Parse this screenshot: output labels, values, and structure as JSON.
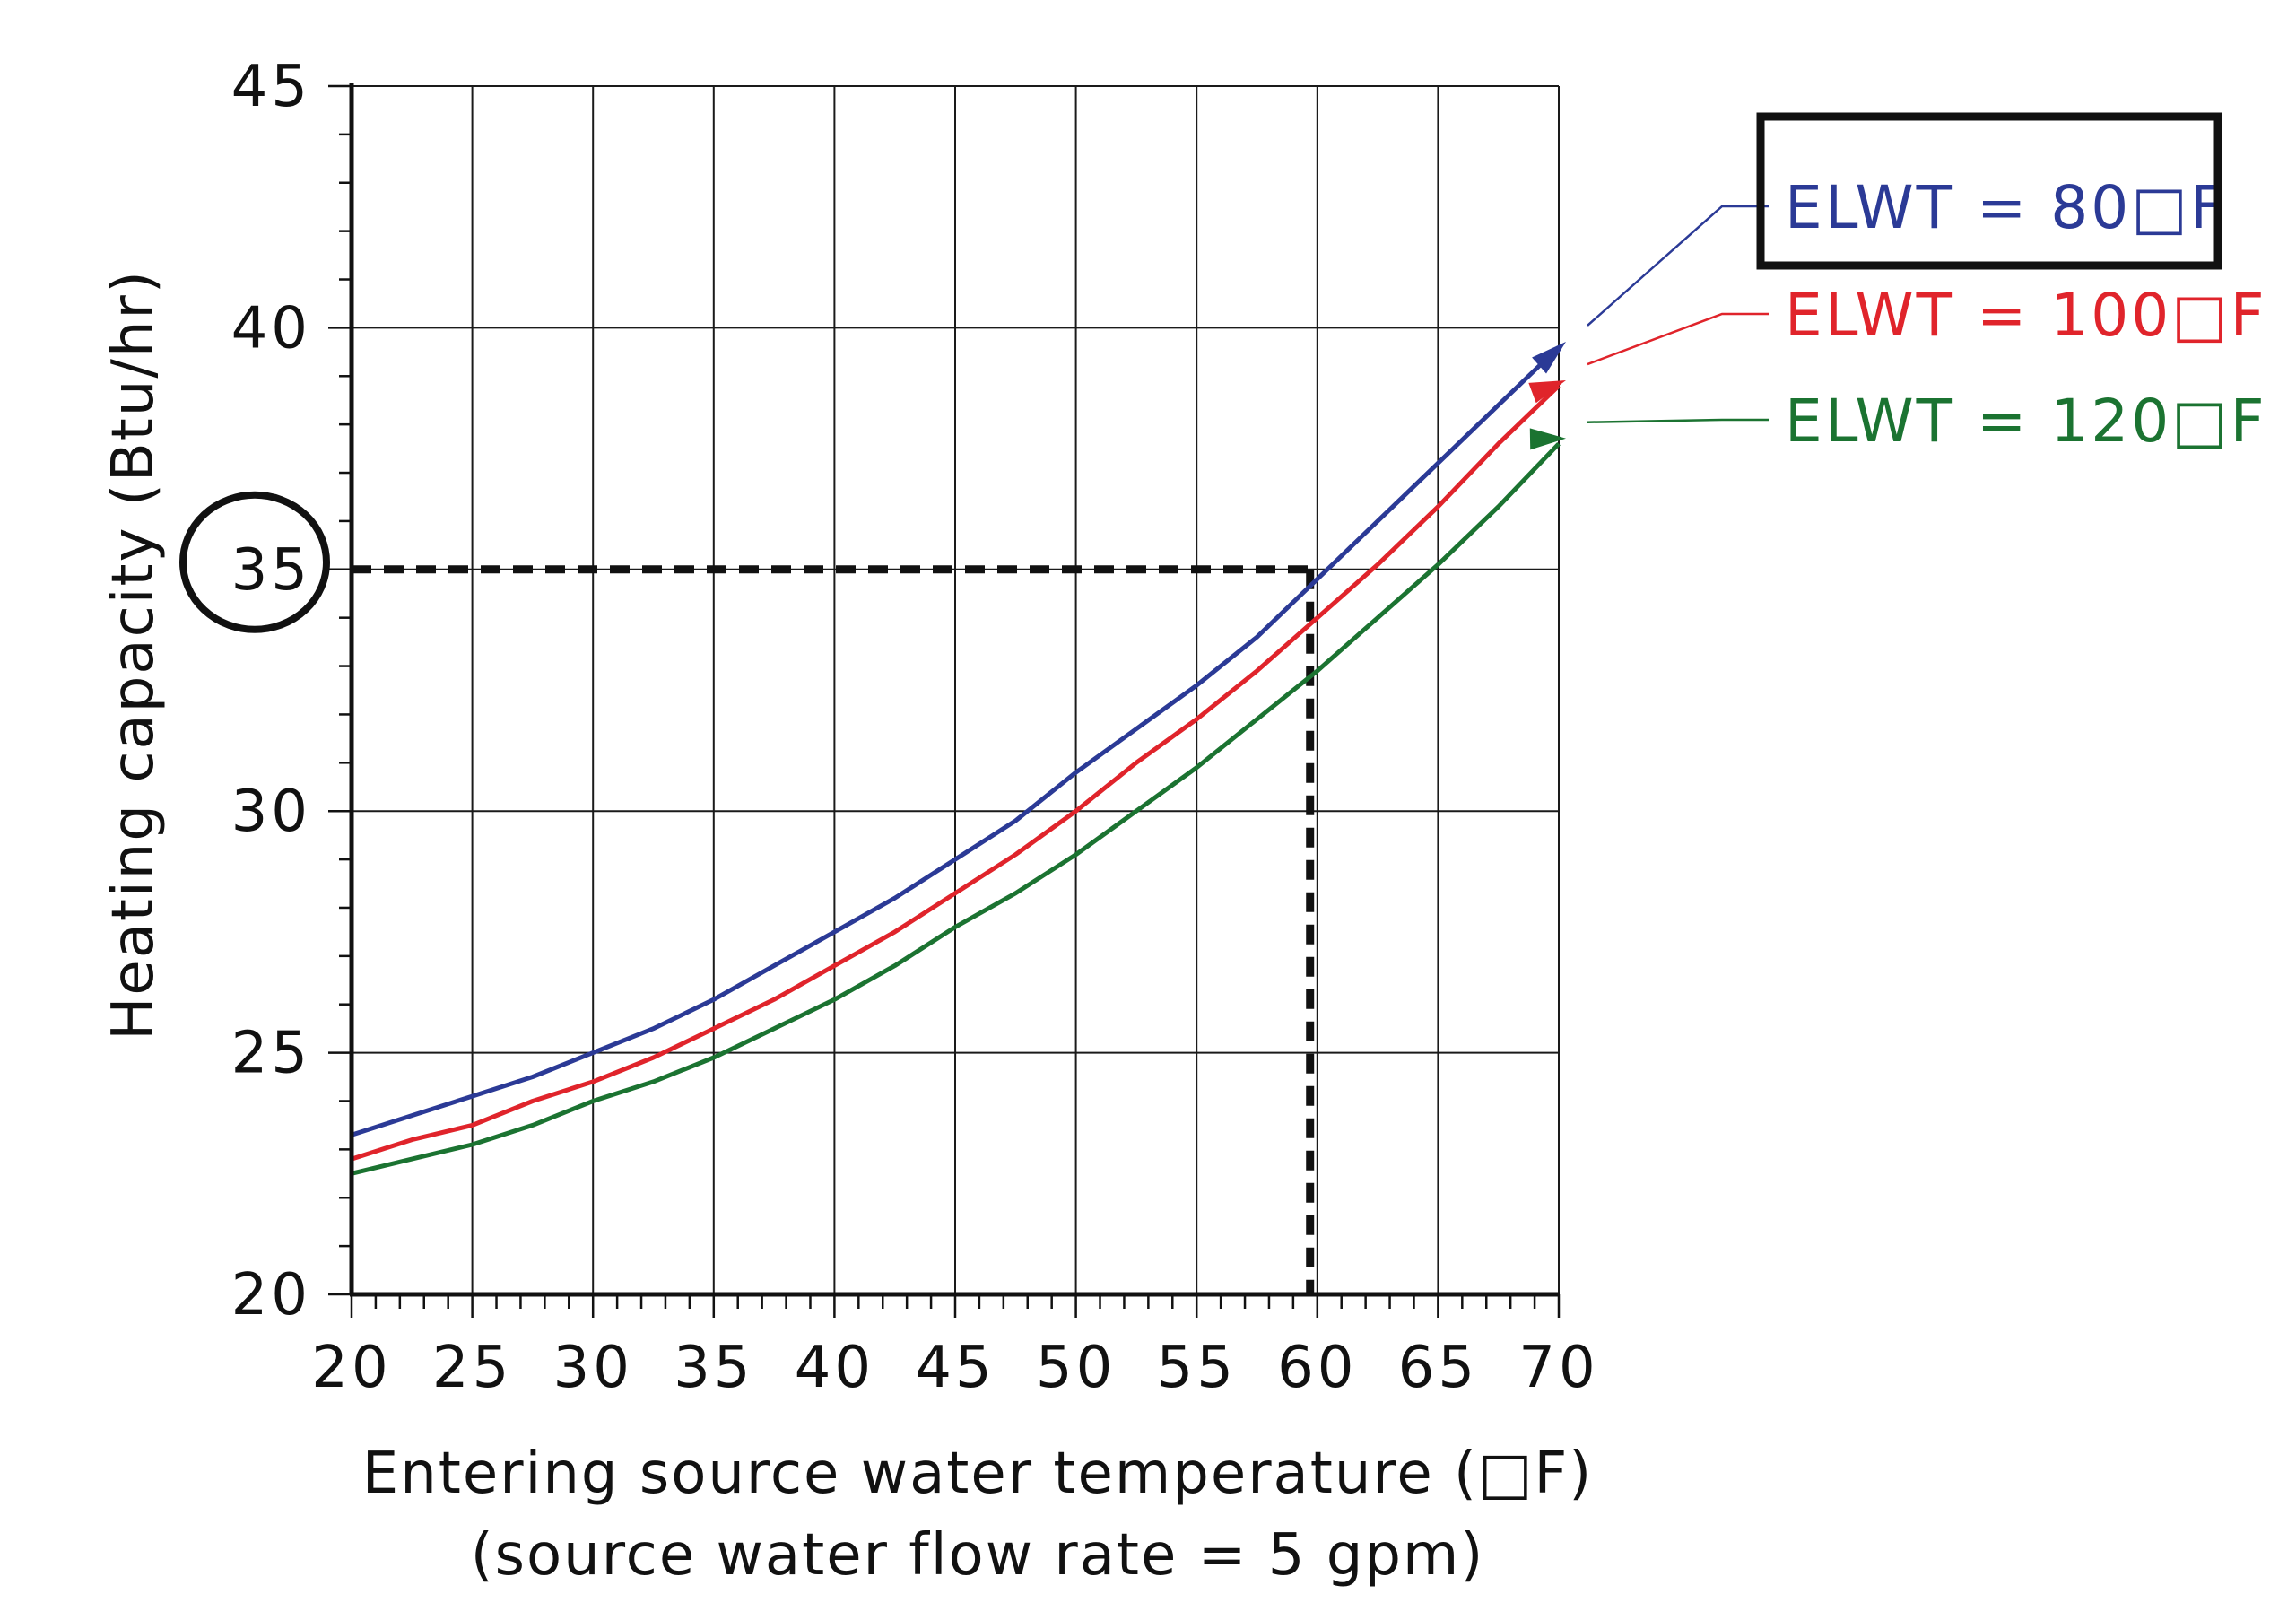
{
  "chart_data": {
    "type": "line",
    "xlabel": "Entering source water temperature (□F)",
    "xlabel_note": "(source water flow rate = 5 gpm)",
    "ylabel": "Heating capacity (Btu/hr)",
    "xlim": [
      20,
      70
    ],
    "ylim": [
      20,
      45
    ],
    "x_ticks": [
      20,
      25,
      30,
      35,
      40,
      45,
      50,
      55,
      60,
      65,
      70
    ],
    "y_ticks": [
      20,
      25,
      30,
      35,
      40,
      45
    ],
    "x_minor_step": 1,
    "y_minor_step": 1,
    "grid": true,
    "legend_position": "right of plot, top",
    "highlighted_y_tick": 35,
    "highlighted_legend_entry": "ELWT = 80□F",
    "reference_lines": {
      "horizontal_y": 35,
      "vertical_x": 59.7,
      "style": "dashed",
      "color": "#111111"
    },
    "series": [
      {
        "name": "ELWT = 80□F",
        "color": "#2b3a96",
        "x": [
          20,
          22.5,
          25,
          27.5,
          30,
          32.5,
          35,
          37.5,
          40,
          42.5,
          45,
          47.5,
          50,
          52.5,
          55,
          57.5,
          60,
          62.5,
          65,
          67.5,
          70
        ],
        "y": [
          23.3,
          23.7,
          24.1,
          24.5,
          25.0,
          25.5,
          26.1,
          26.8,
          27.5,
          28.2,
          29.0,
          29.8,
          30.8,
          31.7,
          32.6,
          33.6,
          34.8,
          36.0,
          37.2,
          38.4,
          39.6
        ]
      },
      {
        "name": "ELWT = 100□F",
        "color": "#e0242b",
        "x": [
          20,
          22.5,
          25,
          27.5,
          30,
          32.5,
          35,
          37.5,
          40,
          42.5,
          45,
          47.5,
          50,
          52.5,
          55,
          57.5,
          60,
          62.5,
          65,
          67.5,
          70
        ],
        "y": [
          22.8,
          23.2,
          23.5,
          24.0,
          24.4,
          24.9,
          25.5,
          26.1,
          26.8,
          27.5,
          28.3,
          29.1,
          30.0,
          31.0,
          31.9,
          32.9,
          34.0,
          35.1,
          36.3,
          37.6,
          38.8
        ]
      },
      {
        "name": "ELWT = 120□F",
        "color": "#1b7331",
        "x": [
          20,
          22.5,
          25,
          27.5,
          30,
          32.5,
          35,
          37.5,
          40,
          42.5,
          45,
          47.5,
          50,
          52.5,
          55,
          57.5,
          60,
          62.5,
          65,
          67.5,
          70
        ],
        "y": [
          22.5,
          22.8,
          23.1,
          23.5,
          24.0,
          24.4,
          24.9,
          25.5,
          26.1,
          26.8,
          27.6,
          28.3,
          29.1,
          30.0,
          30.9,
          31.9,
          32.9,
          34.0,
          35.1,
          36.3,
          37.6
        ]
      }
    ]
  }
}
